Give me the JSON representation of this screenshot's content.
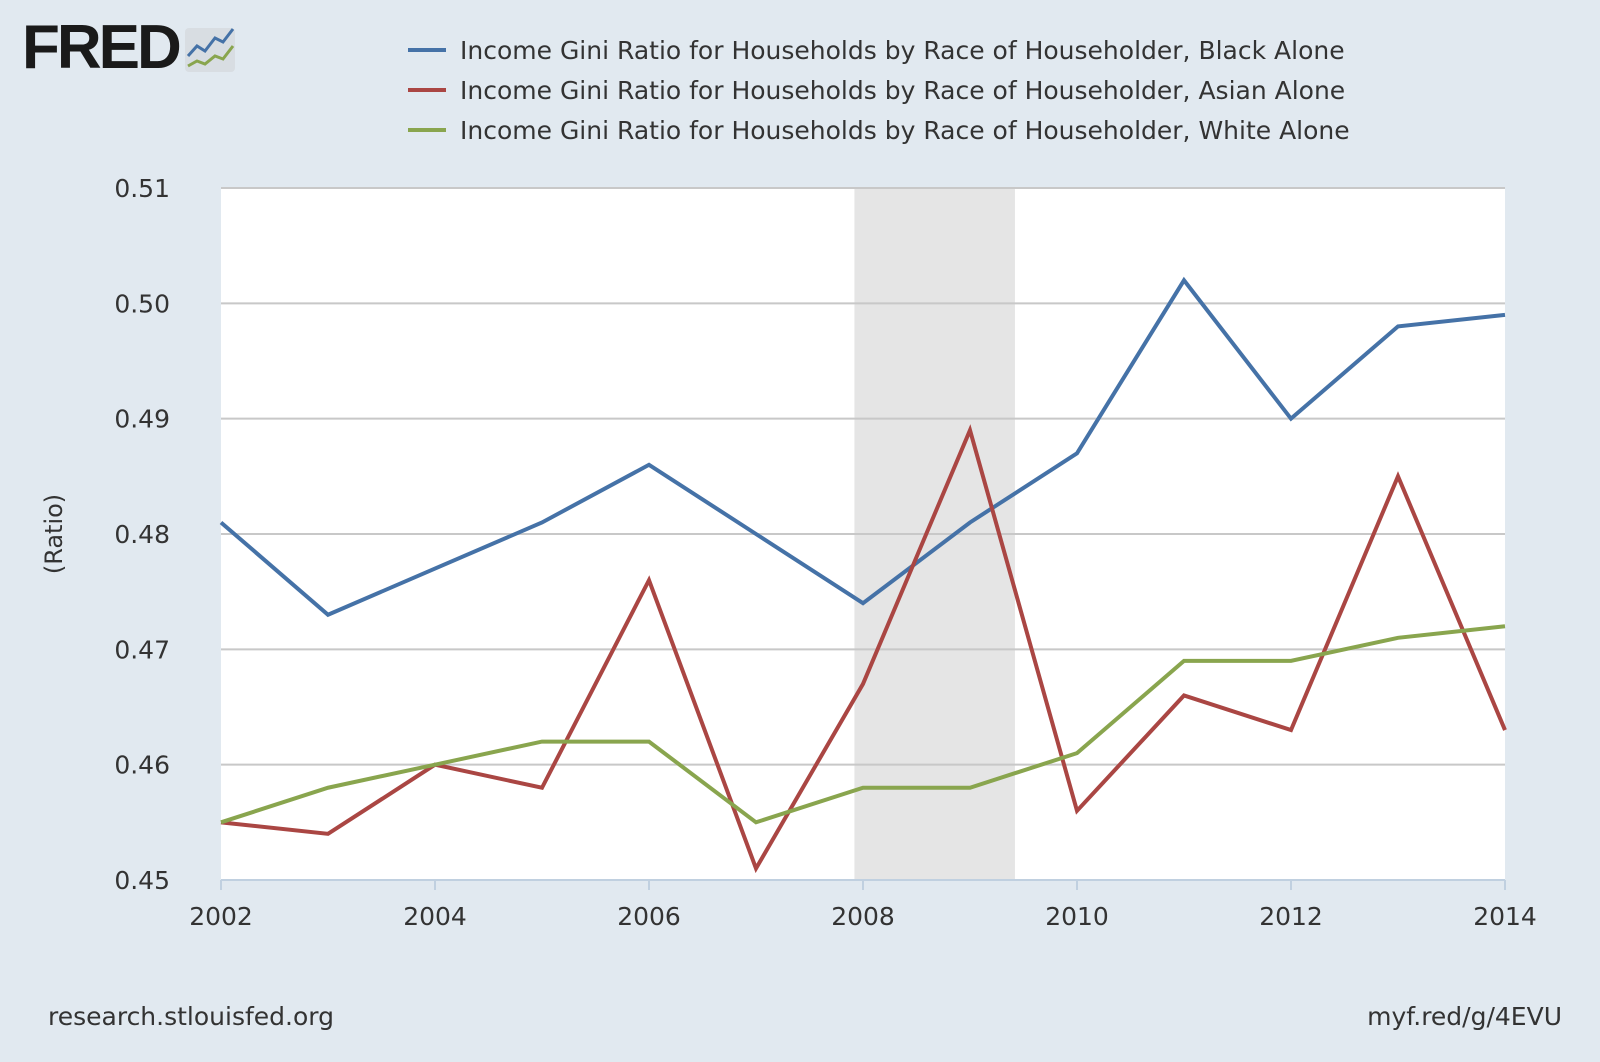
{
  "logo": {
    "text": "FRED"
  },
  "footer": {
    "left": "research.stlouisfed.org",
    "right": "myf.red/g/4EVU"
  },
  "colors": {
    "background": "#e1e9f0",
    "plot": "#ffffff",
    "recession": "#e5e5e5",
    "grid": "#c8c8c8"
  },
  "chart_data": {
    "type": "line",
    "title": "",
    "ylabel": "(Ratio)",
    "xlabel": "",
    "ylim": [
      0.45,
      0.51
    ],
    "yticks": [
      "0.45",
      "0.46",
      "0.47",
      "0.48",
      "0.49",
      "0.50",
      "0.51"
    ],
    "xlim": [
      2002,
      2014
    ],
    "xticks": [
      "2002",
      "2004",
      "2006",
      "2008",
      "2010",
      "2012",
      "2014"
    ],
    "grid": true,
    "legend_position": "top",
    "recession_shading": [
      {
        "start": 2007.92,
        "end": 2009.42
      }
    ],
    "x": [
      2002,
      2003,
      2004,
      2005,
      2006,
      2007,
      2008,
      2009,
      2010,
      2011,
      2012,
      2013,
      2014
    ],
    "series": [
      {
        "name": "Income Gini Ratio for Households by Race of Householder, Black Alone",
        "color": "#4572a7",
        "values": [
          0.481,
          0.473,
          0.477,
          0.481,
          0.486,
          0.48,
          0.474,
          0.481,
          0.487,
          0.502,
          0.49,
          0.498,
          0.499
        ]
      },
      {
        "name": "Income Gini Ratio for Households by Race of Householder, Asian Alone",
        "color": "#aa4643",
        "values": [
          0.455,
          0.454,
          0.46,
          0.458,
          0.476,
          0.451,
          0.467,
          0.489,
          0.456,
          0.466,
          0.463,
          0.485,
          0.463
        ]
      },
      {
        "name": "Income Gini Ratio for Households by Race of Householder, White Alone",
        "color": "#89a54e",
        "values": [
          0.455,
          0.458,
          0.46,
          0.462,
          0.462,
          0.455,
          0.458,
          0.458,
          0.461,
          0.469,
          0.469,
          0.471,
          0.472
        ]
      }
    ]
  }
}
